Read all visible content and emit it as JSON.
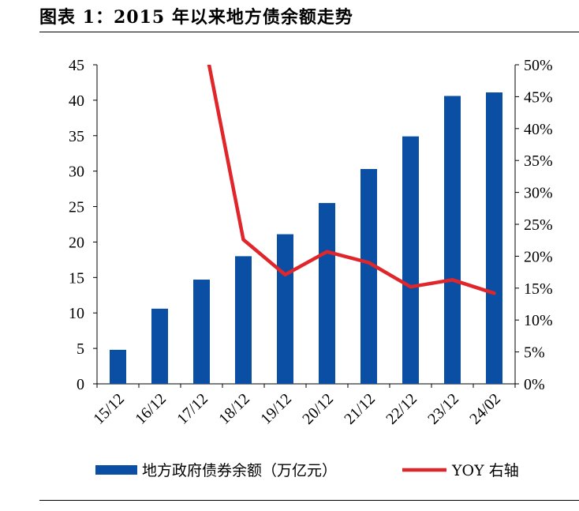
{
  "title": "图表 1：2015 年以来地方债余额走势",
  "chart_data": {
    "type": "bar+line",
    "categories": [
      "15/12",
      "16/12",
      "17/12",
      "18/12",
      "19/12",
      "20/12",
      "21/12",
      "22/12",
      "23/12",
      "24/02"
    ],
    "series": [
      {
        "name": "地方政府债券余额（万亿元）",
        "type": "bar",
        "axis": "left",
        "color": "#0a4fa3",
        "values": [
          4.8,
          10.6,
          14.7,
          18.0,
          21.1,
          25.5,
          30.3,
          34.9,
          40.6,
          41.1
        ]
      },
      {
        "name": "YOY 右轴",
        "type": "line",
        "axis": "right",
        "color": "#e0262a",
        "values": [
          null,
          null,
          56.0,
          22.6,
          17.1,
          20.7,
          19.0,
          15.2,
          16.3,
          14.2
        ]
      }
    ],
    "y_left": {
      "min": 0,
      "max": 45,
      "ticks": [
        "0",
        "5",
        "10",
        "15",
        "20",
        "25",
        "30",
        "35",
        "40",
        "45"
      ]
    },
    "y_right": {
      "min": 0,
      "max": 50,
      "ticks": [
        "0%",
        "5%",
        "10%",
        "15%",
        "20%",
        "25%",
        "30%",
        "35%",
        "40%",
        "45%",
        "50%"
      ]
    },
    "grid": false,
    "legend_position": "bottom"
  }
}
